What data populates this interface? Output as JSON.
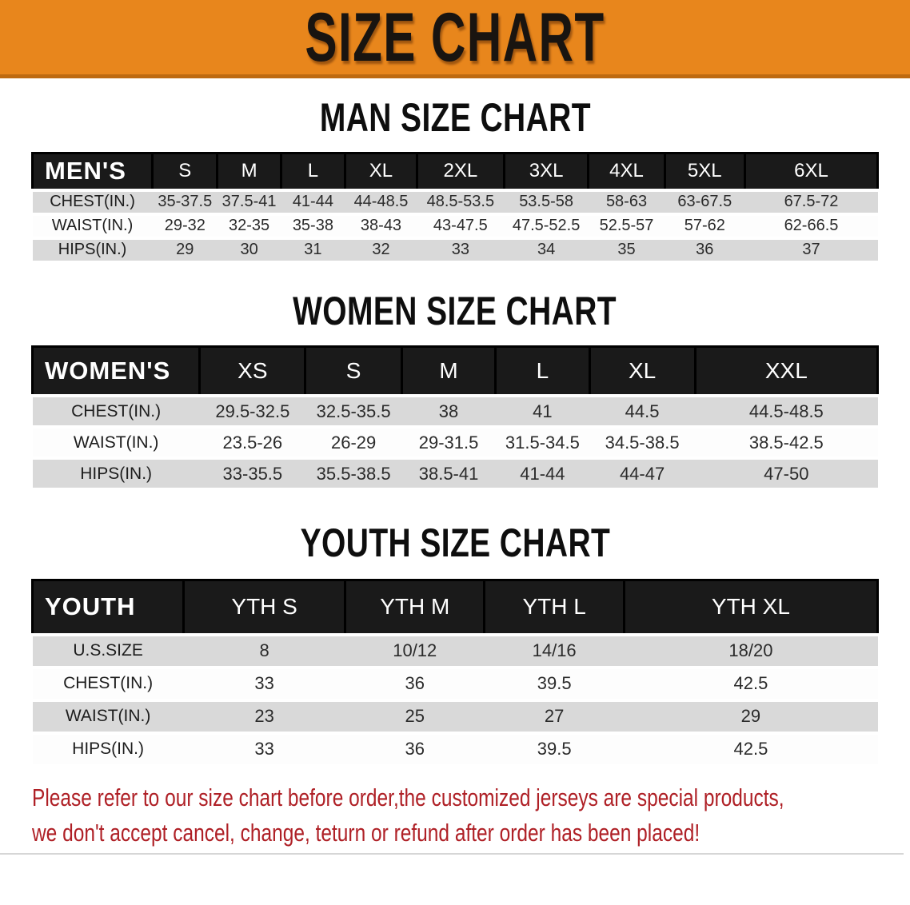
{
  "banner": {
    "title": "SIZE CHART",
    "bg_color": "#E8861C",
    "edge_color": "#BE6A10",
    "text_color": "#191410"
  },
  "sections": [
    {
      "heading": "MAN SIZE CHART",
      "table": {
        "label": "MEN'S",
        "columns": [
          "S",
          "M",
          "L",
          "XL",
          "2XL",
          "3XL",
          "4XL",
          "5XL",
          "6XL"
        ],
        "rows": [
          {
            "label": "CHEST(IN.)",
            "values": [
              "35-37.5",
              "37.5-41",
              "41-44",
              "44-48.5",
              "48.5-53.5",
              "53.5-58",
              "58-63",
              "63-67.5",
              "67.5-72"
            ]
          },
          {
            "label": "WAIST(IN.)",
            "values": [
              "29-32",
              "32-35",
              "35-38",
              "38-43",
              "43-47.5",
              "47.5-52.5",
              "52.5-57",
              "57-62",
              "62-66.5"
            ]
          },
          {
            "label": "HIPS(IN.)",
            "values": [
              "29",
              "30",
              "31",
              "32",
              "33",
              "34",
              "35",
              "36",
              "37"
            ]
          }
        ]
      }
    },
    {
      "heading": "WOMEN SIZE CHART",
      "table": {
        "label": "WOMEN'S",
        "columns": [
          "XS",
          "S",
          "M",
          "L",
          "XL",
          "XXL"
        ],
        "rows": [
          {
            "label": "CHEST(IN.)",
            "values": [
              "29.5-32.5",
              "32.5-35.5",
              "38",
              "41",
              "44.5",
              "44.5-48.5"
            ]
          },
          {
            "label": "WAIST(IN.)",
            "values": [
              "23.5-26",
              "26-29",
              "29-31.5",
              "31.5-34.5",
              "34.5-38.5",
              "38.5-42.5"
            ]
          },
          {
            "label": "HIPS(IN.)",
            "values": [
              "33-35.5",
              "35.5-38.5",
              "38.5-41",
              "41-44",
              "44-47",
              "47-50"
            ]
          }
        ]
      }
    },
    {
      "heading": "YOUTH SIZE CHART",
      "table": {
        "label": "YOUTH",
        "columns": [
          "YTH S",
          "YTH M",
          "YTH L",
          "YTH XL"
        ],
        "rows": [
          {
            "label": "U.S.SIZE",
            "values": [
              "8",
              "10/12",
              "14/16",
              "18/20"
            ]
          },
          {
            "label": "CHEST(IN.)",
            "values": [
              "33",
              "36",
              "39.5",
              "42.5"
            ]
          },
          {
            "label": "WAIST(IN.)",
            "values": [
              "23",
              "25",
              "27",
              "29"
            ]
          },
          {
            "label": "HIPS(IN.)",
            "values": [
              "33",
              "36",
              "39.5",
              "42.5"
            ]
          }
        ]
      }
    }
  ],
  "disclaimer": {
    "line1": "Please refer to our size chart before order,the customized jerseys are special products,",
    "line2": "we don't accept cancel, change, teturn or refund after order has been placed!",
    "text_color": "#AF2026"
  },
  "table_style": {
    "header_bg": "#1a1a1a",
    "stripe_color": "#d9d9d9"
  }
}
